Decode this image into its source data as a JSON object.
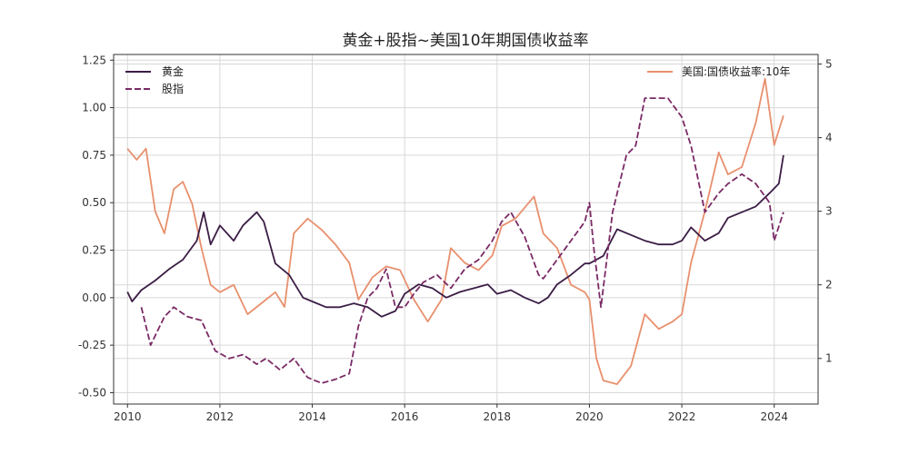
{
  "chart_data": {
    "type": "line",
    "title": "黄金+股指~美国10年期国债收益率",
    "xlabel": "",
    "ylabel": "",
    "ylabel_right": "",
    "xlim": [
      2009.7,
      2024.95
    ],
    "xticks": [
      2010,
      2012,
      2014,
      2016,
      2018,
      2020,
      2022,
      2024
    ],
    "ylim_left": [
      -0.56,
      1.28
    ],
    "yticks_left": [
      -0.5,
      -0.25,
      0.0,
      0.25,
      0.5,
      0.75,
      1.0,
      1.25
    ],
    "ytick_labels_left": [
      "-0.50",
      "-0.25",
      "0.00",
      "0.25",
      "0.50",
      "0.75",
      "1.00",
      "1.25"
    ],
    "ylim_right": [
      0.38,
      5.13
    ],
    "yticks_right": [
      1,
      2,
      3,
      4,
      5
    ],
    "grid": true,
    "colors": {
      "gold": "#3b1d45",
      "index": "#7a2a66",
      "yield": "#e8906d",
      "grid": "#d8d8d8",
      "spine": "#333333"
    },
    "legend_left": {
      "placement": "upper-left",
      "entries": [
        "黄金",
        "股指"
      ]
    },
    "legend_right": {
      "placement": "upper-right",
      "entries": [
        "美国:国债收益率:10年"
      ]
    },
    "series": [
      {
        "name": "黄金",
        "axis": "left",
        "style": "solid",
        "x": [
          2010.0,
          2010.1,
          2010.3,
          2010.6,
          2010.9,
          2011.2,
          2011.5,
          2011.65,
          2011.8,
          2012.0,
          2012.3,
          2012.5,
          2012.8,
          2012.95,
          2013.2,
          2013.5,
          2013.8,
          2014.0,
          2014.3,
          2014.6,
          2014.9,
          2015.2,
          2015.5,
          2015.8,
          2016.0,
          2016.3,
          2016.6,
          2016.9,
          2017.2,
          2017.5,
          2017.8,
          2018.0,
          2018.3,
          2018.6,
          2018.9,
          2019.1,
          2019.3,
          2019.6,
          2019.9,
          2020.0,
          2020.3,
          2020.6,
          2020.9,
          2021.2,
          2021.5,
          2021.8,
          2022.0,
          2022.2,
          2022.5,
          2022.8,
          2023.0,
          2023.3,
          2023.6,
          2023.9,
          2024.1,
          2024.2
        ],
        "values": [
          0.03,
          -0.02,
          0.04,
          0.09,
          0.15,
          0.2,
          0.3,
          0.45,
          0.28,
          0.38,
          0.3,
          0.38,
          0.45,
          0.4,
          0.18,
          0.12,
          0.0,
          -0.02,
          -0.05,
          -0.05,
          -0.03,
          -0.05,
          -0.1,
          -0.07,
          0.02,
          0.07,
          0.05,
          0.0,
          0.03,
          0.05,
          0.07,
          0.02,
          0.04,
          0.0,
          -0.03,
          0.0,
          0.07,
          0.12,
          0.18,
          0.18,
          0.22,
          0.36,
          0.33,
          0.3,
          0.28,
          0.28,
          0.3,
          0.37,
          0.3,
          0.34,
          0.42,
          0.45,
          0.48,
          0.55,
          0.6,
          0.75
        ]
      },
      {
        "name": "股指",
        "axis": "left",
        "style": "dashed",
        "x": [
          2010.3,
          2010.5,
          2010.8,
          2011.0,
          2011.3,
          2011.6,
          2011.9,
          2012.2,
          2012.5,
          2012.8,
          2013.0,
          2013.3,
          2013.6,
          2013.9,
          2014.2,
          2014.5,
          2014.8,
          2015.0,
          2015.2,
          2015.4,
          2015.6,
          2015.8,
          2016.0,
          2016.2,
          2016.4,
          2016.7,
          2017.0,
          2017.3,
          2017.6,
          2017.9,
          2018.1,
          2018.3,
          2018.6,
          2018.9,
          2019.0,
          2019.3,
          2019.6,
          2019.9,
          2020.0,
          2020.1,
          2020.25,
          2020.5,
          2020.8,
          2021.0,
          2021.2,
          2021.4,
          2021.7,
          2022.0,
          2022.2,
          2022.5,
          2022.8,
          2023.0,
          2023.3,
          2023.6,
          2023.9,
          2024.0,
          2024.2
        ],
        "values": [
          -0.05,
          -0.25,
          -0.1,
          -0.05,
          -0.1,
          -0.12,
          -0.28,
          -0.32,
          -0.3,
          -0.35,
          -0.32,
          -0.38,
          -0.32,
          -0.42,
          -0.45,
          -0.43,
          -0.4,
          -0.15,
          0.0,
          0.05,
          0.15,
          -0.05,
          -0.05,
          0.02,
          0.08,
          0.12,
          0.05,
          0.15,
          0.2,
          0.3,
          0.4,
          0.45,
          0.32,
          0.12,
          0.1,
          0.2,
          0.3,
          0.4,
          0.5,
          0.25,
          -0.05,
          0.45,
          0.75,
          0.8,
          1.05,
          1.05,
          1.05,
          0.95,
          0.8,
          0.45,
          0.55,
          0.6,
          0.65,
          0.6,
          0.5,
          0.3,
          0.45
        ]
      },
      {
        "name": "美国:国债收益率:10年",
        "axis": "right",
        "style": "solid",
        "x": [
          2010.0,
          2010.2,
          2010.4,
          2010.6,
          2010.8,
          2011.0,
          2011.2,
          2011.4,
          2011.6,
          2011.8,
          2012.0,
          2012.3,
          2012.6,
          2012.9,
          2013.2,
          2013.4,
          2013.6,
          2013.9,
          2014.2,
          2014.5,
          2014.8,
          2015.0,
          2015.3,
          2015.6,
          2015.9,
          2016.2,
          2016.5,
          2016.8,
          2017.0,
          2017.3,
          2017.6,
          2017.9,
          2018.1,
          2018.4,
          2018.8,
          2019.0,
          2019.3,
          2019.6,
          2019.9,
          2020.0,
          2020.15,
          2020.3,
          2020.6,
          2020.9,
          2021.2,
          2021.5,
          2021.8,
          2022.0,
          2022.2,
          2022.5,
          2022.8,
          2023.0,
          2023.3,
          2023.6,
          2023.8,
          2024.0,
          2024.2
        ],
        "values": [
          3.85,
          3.7,
          3.85,
          3.0,
          2.7,
          3.3,
          3.4,
          3.1,
          2.5,
          2.0,
          1.9,
          2.0,
          1.6,
          1.75,
          1.9,
          1.7,
          2.7,
          2.9,
          2.75,
          2.55,
          2.3,
          1.8,
          2.1,
          2.25,
          2.2,
          1.8,
          1.5,
          1.8,
          2.5,
          2.3,
          2.2,
          2.4,
          2.8,
          2.9,
          3.2,
          2.7,
          2.5,
          2.0,
          1.9,
          1.8,
          1.0,
          0.7,
          0.65,
          0.9,
          1.6,
          1.4,
          1.5,
          1.6,
          2.3,
          3.0,
          3.8,
          3.5,
          3.6,
          4.2,
          4.8,
          3.9,
          4.3
        ]
      }
    ]
  }
}
